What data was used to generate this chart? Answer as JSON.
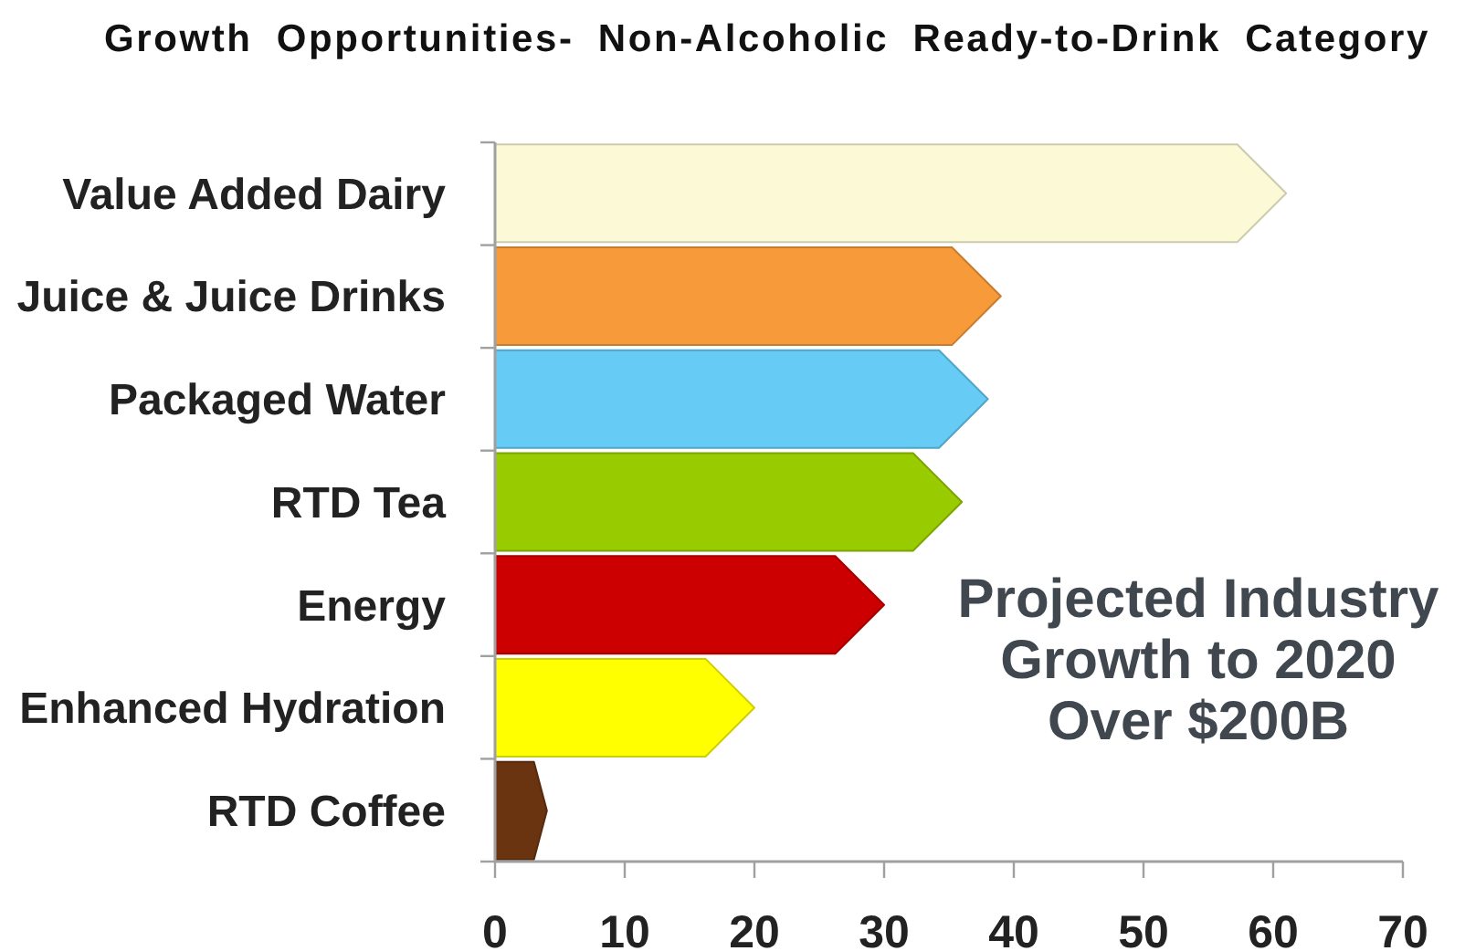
{
  "chart_data": {
    "type": "bar",
    "orientation": "horizontal",
    "title": "Growth Opportunities- Non-Alcoholic Ready-to-Drink Category",
    "categories": [
      "Value Added Dairy",
      "Juice & Juice Drinks",
      "Packaged Water",
      "RTD Tea",
      "Energy",
      "Enhanced Hydration",
      "RTD Coffee"
    ],
    "values": [
      61,
      39,
      38,
      36,
      30,
      20,
      4
    ],
    "colors": [
      "#fcfad6",
      "#f79a3a",
      "#66ccf5",
      "#99cc00",
      "#cc0000",
      "#ffff00",
      "#6b3410"
    ],
    "xlim": [
      0,
      70
    ],
    "xticks": [
      0,
      10,
      20,
      30,
      40,
      50,
      60,
      70
    ],
    "annotations": [
      "Projected Industry\nGrowth to 2020\nOver $200B"
    ]
  }
}
